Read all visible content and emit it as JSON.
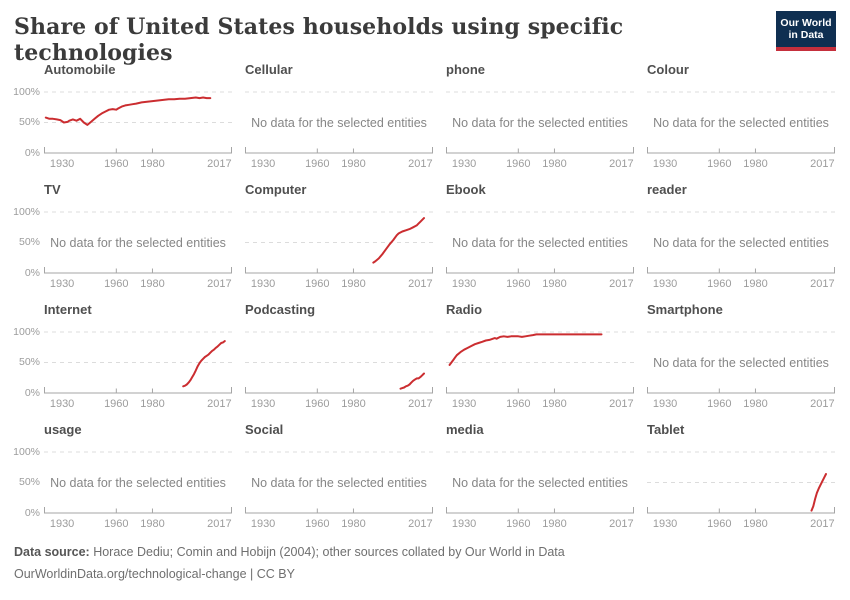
{
  "header": {
    "title": "Share of United States households using specific technologies",
    "logo": {
      "line1": "Our World",
      "line2": "in Data"
    }
  },
  "colors": {
    "line_red": "#cb2d30",
    "gridline": "#dcdcdc",
    "axis": "#a5a5a5",
    "tick_label": "#9c9c9c",
    "panel_title": "#4f4f4f",
    "no_data_text_color": "#868686",
    "logo_navy": "#0f2f51",
    "logo_red": "#c52f3c"
  },
  "axis": {
    "x_domain": [
      1920,
      2024
    ],
    "x_tick_labels": [
      "1930",
      "1960",
      "1980",
      "2017"
    ],
    "x_tick_years": [
      1930,
      1960,
      1980,
      2017
    ],
    "x_interior_tick_years": [
      1960,
      1980
    ],
    "y_tick_labels": [
      "100%",
      "50%",
      "0%"
    ],
    "y_domain": [
      0,
      100
    ],
    "grid": "dashed horizontal at 100% and 50%",
    "no_data_text": "No data for the selected entities"
  },
  "chart_data": {
    "type": "line",
    "unit": "% of households",
    "title": "Share of United States households using specific technologies",
    "layout": "4x4 small multiples, shared x axis 1920-2024, y 0-100%",
    "panels": [
      {
        "title": "Automobile",
        "has_data": true,
        "series": [
          [
            1921,
            58
          ],
          [
            1923,
            56
          ],
          [
            1925,
            56
          ],
          [
            1927,
            55
          ],
          [
            1929,
            54
          ],
          [
            1931,
            50
          ],
          [
            1933,
            51
          ],
          [
            1934,
            53
          ],
          [
            1936,
            55
          ],
          [
            1938,
            53
          ],
          [
            1940,
            56
          ],
          [
            1942,
            50
          ],
          [
            1944,
            46
          ],
          [
            1946,
            51
          ],
          [
            1948,
            56
          ],
          [
            1950,
            61
          ],
          [
            1952,
            65
          ],
          [
            1954,
            68
          ],
          [
            1956,
            71
          ],
          [
            1958,
            72
          ],
          [
            1960,
            71
          ],
          [
            1961,
            73
          ],
          [
            1963,
            76
          ],
          [
            1965,
            78
          ],
          [
            1967,
            79
          ],
          [
            1969,
            80
          ],
          [
            1971,
            81
          ],
          [
            1974,
            83
          ],
          [
            1977,
            84
          ],
          [
            1980,
            85
          ],
          [
            1983,
            86
          ],
          [
            1986,
            87
          ],
          [
            1989,
            88
          ],
          [
            1992,
            88
          ],
          [
            1995,
            89
          ],
          [
            1998,
            89
          ],
          [
            2001,
            90
          ],
          [
            2004,
            91
          ],
          [
            2006,
            90
          ],
          [
            2008,
            91
          ],
          [
            2010,
            90
          ],
          [
            2012,
            90
          ]
        ]
      },
      {
        "title": "Cellular",
        "has_data": false,
        "series": null
      },
      {
        "title": "phone",
        "has_data": false,
        "series": null
      },
      {
        "title": "Colour",
        "has_data": false,
        "series": null
      },
      {
        "title": "TV",
        "has_data": false,
        "series": null
      },
      {
        "title": "Computer",
        "has_data": true,
        "series": [
          [
            1991,
            17
          ],
          [
            1992,
            19
          ],
          [
            1994,
            24
          ],
          [
            1996,
            31
          ],
          [
            1998,
            39
          ],
          [
            2000,
            47
          ],
          [
            2002,
            54
          ],
          [
            2004,
            62
          ],
          [
            2005,
            65
          ],
          [
            2007,
            68
          ],
          [
            2009,
            70
          ],
          [
            2011,
            72
          ],
          [
            2013,
            75
          ],
          [
            2015,
            78
          ],
          [
            2016,
            81
          ],
          [
            2017,
            84
          ],
          [
            2019,
            90
          ]
        ]
      },
      {
        "title": "Ebook",
        "has_data": false,
        "series": null
      },
      {
        "title": "reader",
        "has_data": false,
        "series": null
      },
      {
        "title": "Internet",
        "has_data": true,
        "series": [
          [
            1997,
            11
          ],
          [
            1998,
            12
          ],
          [
            1999,
            14
          ],
          [
            2000,
            17
          ],
          [
            2001,
            21
          ],
          [
            2002,
            26
          ],
          [
            2003,
            31
          ],
          [
            2004,
            37
          ],
          [
            2005,
            44
          ],
          [
            2006,
            49
          ],
          [
            2007,
            53
          ],
          [
            2008,
            56
          ],
          [
            2009,
            59
          ],
          [
            2010,
            61
          ],
          [
            2011,
            63
          ],
          [
            2012,
            66
          ],
          [
            2013,
            69
          ],
          [
            2014,
            71
          ],
          [
            2015,
            74
          ],
          [
            2016,
            76
          ],
          [
            2017,
            79
          ],
          [
            2018,
            82
          ],
          [
            2019,
            83
          ],
          [
            2020,
            85
          ]
        ]
      },
      {
        "title": "Podcasting",
        "has_data": true,
        "series": [
          [
            2006,
            7
          ],
          [
            2007,
            8
          ],
          [
            2008,
            9
          ],
          [
            2009,
            11
          ],
          [
            2010,
            12
          ],
          [
            2011,
            14
          ],
          [
            2012,
            17
          ],
          [
            2013,
            20
          ],
          [
            2014,
            22
          ],
          [
            2015,
            24
          ],
          [
            2016,
            24
          ],
          [
            2017,
            26
          ],
          [
            2018,
            29
          ],
          [
            2019,
            32
          ]
        ]
      },
      {
        "title": "Radio",
        "has_data": true,
        "series": [
          [
            1922,
            46
          ],
          [
            1923,
            50
          ],
          [
            1924,
            54
          ],
          [
            1925,
            58
          ],
          [
            1926,
            62
          ],
          [
            1928,
            67
          ],
          [
            1930,
            71
          ],
          [
            1932,
            74
          ],
          [
            1934,
            77
          ],
          [
            1936,
            80
          ],
          [
            1938,
            82
          ],
          [
            1940,
            84
          ],
          [
            1942,
            86
          ],
          [
            1944,
            87
          ],
          [
            1945,
            88
          ],
          [
            1947,
            90
          ],
          [
            1948,
            89
          ],
          [
            1950,
            92
          ],
          [
            1952,
            93
          ],
          [
            1954,
            92
          ],
          [
            1956,
            93
          ],
          [
            1958,
            93
          ],
          [
            1960,
            93
          ],
          [
            1962,
            92
          ],
          [
            1964,
            93
          ],
          [
            1966,
            94
          ],
          [
            1968,
            95
          ],
          [
            1970,
            96
          ],
          [
            1974,
            96
          ],
          [
            1978,
            96
          ],
          [
            1982,
            96
          ],
          [
            1986,
            96
          ],
          [
            1990,
            96
          ],
          [
            1994,
            96
          ],
          [
            1998,
            96
          ],
          [
            2002,
            96
          ],
          [
            2006,
            96
          ]
        ]
      },
      {
        "title": "Smartphone",
        "has_data": false,
        "series": null
      },
      {
        "title": "usage",
        "has_data": false,
        "series": null
      },
      {
        "title": "Social",
        "has_data": false,
        "series": null
      },
      {
        "title": "media",
        "has_data": false,
        "series": null
      },
      {
        "title": "Tablet",
        "has_data": true,
        "series": [
          [
            2011,
            4
          ],
          [
            2012,
            11
          ],
          [
            2013,
            23
          ],
          [
            2014,
            33
          ],
          [
            2015,
            40
          ],
          [
            2016,
            46
          ],
          [
            2017,
            52
          ],
          [
            2018,
            58
          ],
          [
            2019,
            64
          ]
        ]
      }
    ]
  },
  "footer": {
    "source_label": "Data source:",
    "source_text": " Horace Dediu; Comin and Hobijn (2004); other sources collated by Our World in Data",
    "license_line": "OurWorldinData.org/technological-change | CC BY"
  }
}
